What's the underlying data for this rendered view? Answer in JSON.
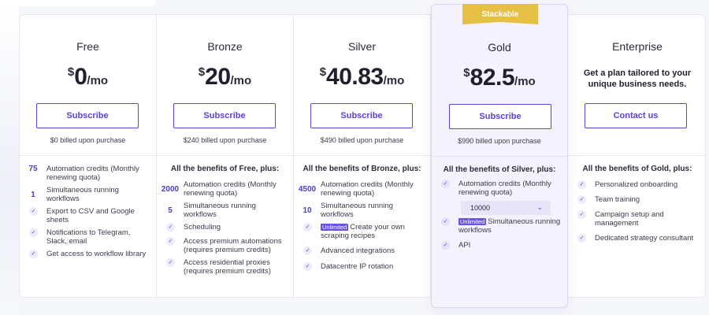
{
  "badge": "Stackable",
  "plans": [
    {
      "name": "Free",
      "currency": "$",
      "amount": "0",
      "period": "/mo",
      "button": "Subscribe",
      "billed": "$0 billed upon purchase",
      "features": [
        {
          "marker": "75",
          "text": "Automation credits (Monthly renewing quota)"
        },
        {
          "marker": "1",
          "text": "Simultaneous running workflows"
        },
        {
          "marker": "check",
          "text": "Export to CSV and Google sheets"
        },
        {
          "marker": "check",
          "text": "Notifications to Telegram, Slack, email"
        },
        {
          "marker": "check",
          "text": "Get access to workflow library"
        }
      ]
    },
    {
      "name": "Bronze",
      "currency": "$",
      "amount": "20",
      "period": "/mo",
      "button": "Subscribe",
      "billed": "$240 billed upon purchase",
      "benefits_head": "All the benefits of Free, plus:",
      "features": [
        {
          "marker": "2000",
          "text": "Automation credits (Monthly renewing quota)"
        },
        {
          "marker": "5",
          "text": "Simultaneous running workflows"
        },
        {
          "marker": "check",
          "text": "Scheduling"
        },
        {
          "marker": "check",
          "text": "Access premium automations (requires premium credits)"
        },
        {
          "marker": "check",
          "text": "Access residential proxies (requires premium credits)"
        }
      ]
    },
    {
      "name": "Silver",
      "currency": "$",
      "amount": "40.83",
      "period": "/mo",
      "button": "Subscribe",
      "billed": "$490 billed upon purchase",
      "benefits_head": "All the benefits of Bronze, plus:",
      "features": [
        {
          "marker": "4500",
          "text": "Automation credits (Monthly renewing quota)"
        },
        {
          "marker": "10",
          "text": "Simultaneous running workflows"
        },
        {
          "marker": "check",
          "badge": "Unlimited",
          "text": "Create your own scraping recipes"
        },
        {
          "marker": "check",
          "text": "Advanced integrations"
        },
        {
          "marker": "check",
          "text": "Datacentre IP rotation"
        }
      ]
    },
    {
      "name": "Gold",
      "currency": "$",
      "amount": "82.5",
      "period": "/mo",
      "button": "Subscribe",
      "billed": "$990 billed upon purchase",
      "benefits_head": "All the benefits of Silver, plus:",
      "credits_select": "10000",
      "features": [
        {
          "marker": "check",
          "text": "Automation credits (Monthly renewing quota)"
        },
        {
          "marker": "check",
          "badge": "Unlimited",
          "text": "Simultaneous running workflows"
        },
        {
          "marker": "check",
          "text": "API"
        }
      ]
    },
    {
      "name": "Enterprise",
      "tagline": "Get a plan tailored to your unique business needs.",
      "button": "Contact us",
      "benefits_head": "All the benefits of Gold, plus:",
      "features": [
        {
          "marker": "check",
          "text": "Personalized onboarding"
        },
        {
          "marker": "check",
          "text": "Team training"
        },
        {
          "marker": "check",
          "text": "Campaign setup and management"
        },
        {
          "marker": "check",
          "text": "Dedicated strategy consultant"
        }
      ]
    }
  ],
  "colors": {
    "accent": "#5b43d6",
    "badge": "#e6bf45",
    "unlimited": "#6a54dd"
  }
}
